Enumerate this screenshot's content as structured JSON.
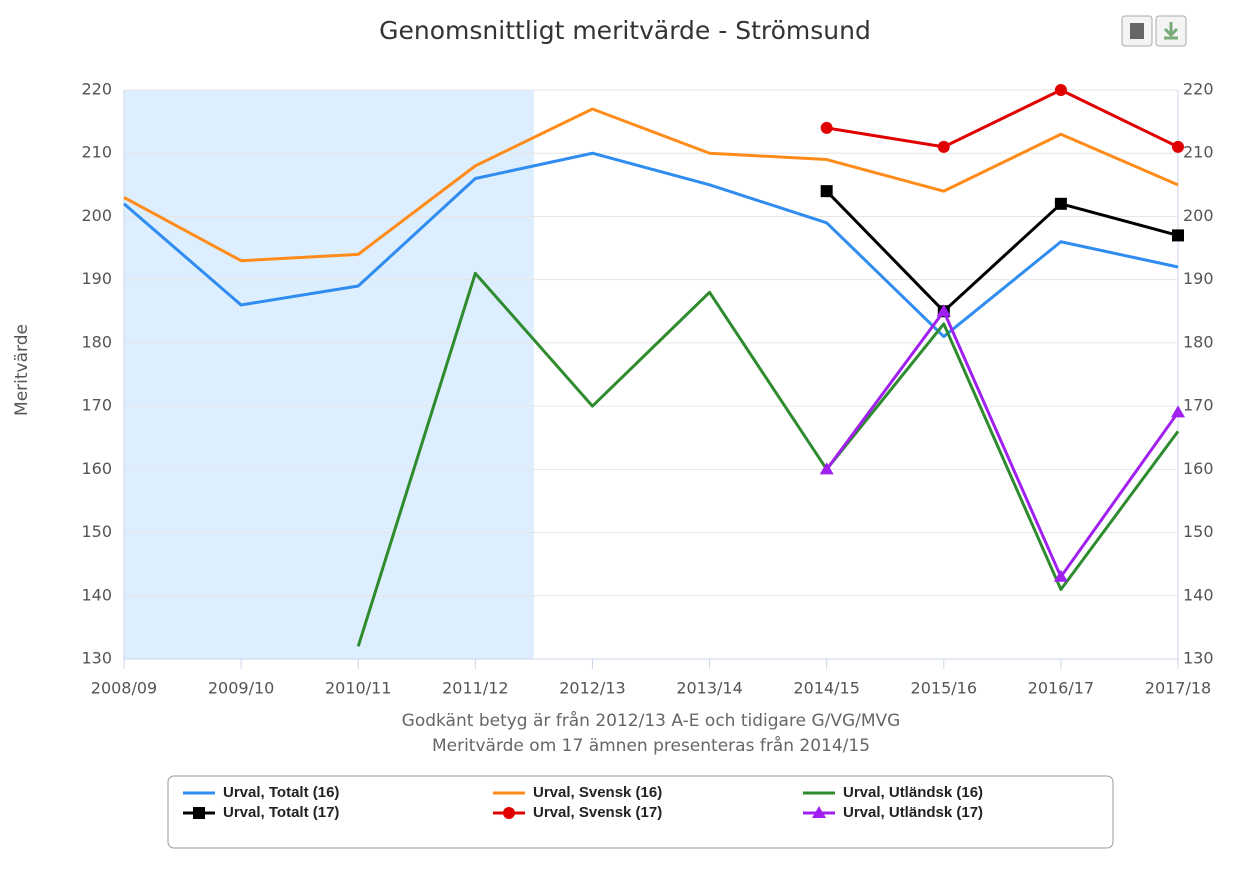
{
  "chart_data": {
    "type": "line",
    "title": "Genomsnittligt meritvärde - Strömsund",
    "ylabel": "Meritvärde",
    "annotations": [
      "Godkänt betyg är från 2012/13 A-E och tidigare G/VG/MVG",
      "Meritvärde om 17 ämnen presenteras från 2014/15"
    ],
    "categories": [
      "2008/09",
      "2009/10",
      "2010/11",
      "2011/12",
      "2012/13",
      "2013/14",
      "2014/15",
      "2015/16",
      "2016/17",
      "2017/18"
    ],
    "series": [
      {
        "name": "Urval, Totalt (16)",
        "color": "#2f8cf0",
        "marker": null,
        "values": [
          202,
          186,
          189,
          206,
          210,
          205,
          199,
          181,
          196,
          192
        ]
      },
      {
        "name": "Urval, Svensk (16)",
        "color": "#ff8c1a",
        "marker": null,
        "values": [
          203,
          193,
          194,
          208,
          217,
          210,
          209,
          204,
          213,
          205
        ]
      },
      {
        "name": "Urval, Utländsk (16)",
        "color": "#2e8b2e",
        "marker": null,
        "values": [
          null,
          null,
          132,
          191,
          170,
          188,
          160,
          183,
          141,
          166
        ]
      },
      {
        "name": "Urval, Totalt (17)",
        "color": "#000000",
        "marker": "square",
        "values": [
          null,
          null,
          null,
          null,
          null,
          null,
          204,
          185,
          202,
          197
        ]
      },
      {
        "name": "Urval, Svensk (17)",
        "color": "#e00000",
        "marker": "circle",
        "values": [
          null,
          null,
          null,
          null,
          null,
          null,
          214,
          211,
          220,
          211
        ]
      },
      {
        "name": "Urval, Utländsk (17)",
        "color": "#a020f0",
        "marker": "triangle",
        "values": [
          null,
          null,
          null,
          null,
          null,
          null,
          160,
          185,
          143,
          169
        ]
      }
    ],
    "ylim": [
      130,
      220
    ],
    "yticks": [
      130,
      140,
      150,
      160,
      170,
      180,
      190,
      200,
      210,
      220
    ],
    "y2lim": [
      130,
      220
    ],
    "y2ticks": [
      130,
      140,
      150,
      160,
      170,
      180,
      190,
      200,
      210,
      220
    ],
    "grid": true,
    "legend": "bottom"
  }
}
